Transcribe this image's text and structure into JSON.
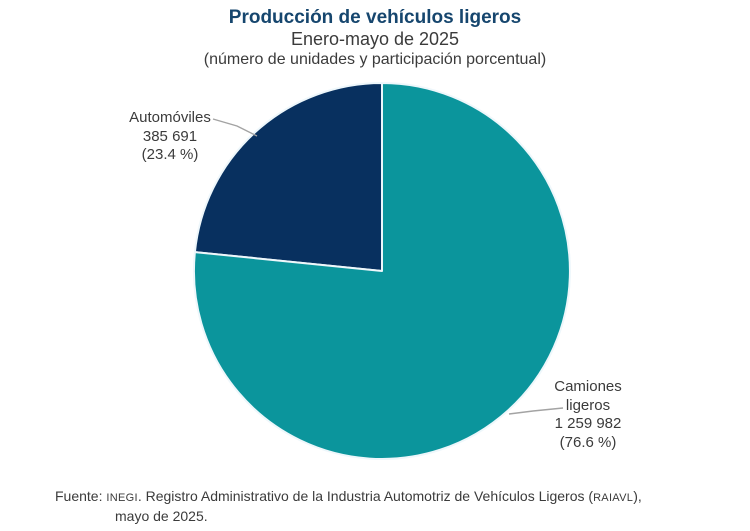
{
  "chart_data": {
    "type": "pie",
    "title": "Producción de vehículos ligeros",
    "subtitle": "Enero-mayo de 2025",
    "note": "(número de unidades y participación porcentual)",
    "title_color": "#16466e",
    "text_color": "#3b3b3b",
    "leader_line_color": "#a3a3a3",
    "separator_color": "#eef7fb",
    "background_color": "#ffffff",
    "start_angle_deg": 0,
    "direction": "counterclockwise",
    "legend_position": "none",
    "slices": [
      {
        "label": "Automóviles",
        "value": 385691,
        "value_text": "385 691",
        "pct": 23.4,
        "pct_text": "(23.4 %)",
        "color": "#08305f"
      },
      {
        "label": "Camiones ligeros",
        "value": 1259982,
        "value_text": "1 259 982",
        "pct": 76.6,
        "pct_text": "(76.6 %)",
        "color": "#0b959c"
      }
    ]
  },
  "source": {
    "prefix": "Fuente: ",
    "org": "INEGI",
    "text1": ". Registro Administrativo de la Industria Automotriz de Vehículos Ligeros (",
    "acronym": "RAIAVL",
    "text2": "),",
    "line2": "mayo de 2025."
  }
}
